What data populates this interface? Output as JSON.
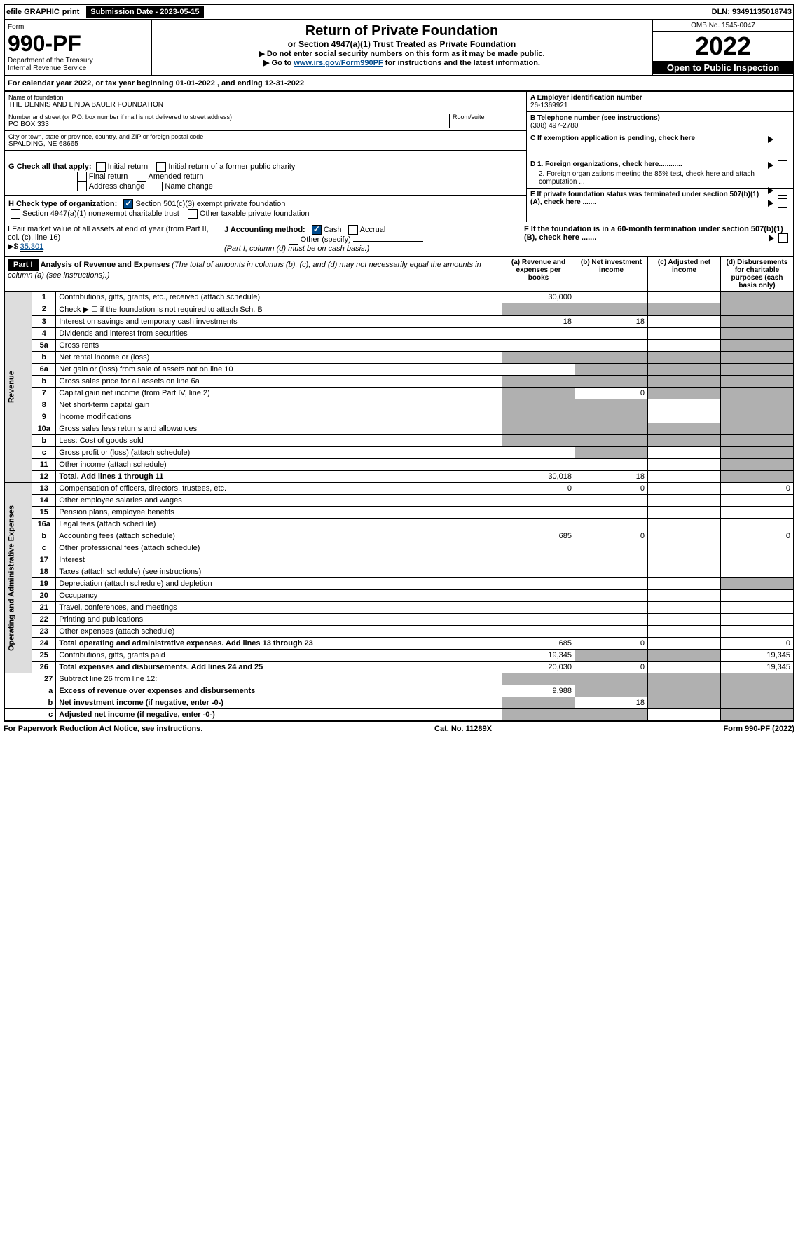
{
  "topbar": {
    "efile": "efile GRAPHIC",
    "print": "print",
    "submission_label": "Submission Date - 2023-05-15",
    "dln": "DLN: 93491135018743"
  },
  "header": {
    "form_label": "Form",
    "form_number": "990-PF",
    "dept": "Department of the Treasury\nInternal Revenue Service",
    "title": "Return of Private Foundation",
    "subtitle": "or Section 4947(a)(1) Trust Treated as Private Foundation",
    "instr1": "▶ Do not enter social security numbers on this form as it may be made public.",
    "instr2_pre": "▶ Go to ",
    "instr2_link": "www.irs.gov/Form990PF",
    "instr2_post": " for instructions and the latest information.",
    "omb": "OMB No. 1545-0047",
    "year": "2022",
    "open": "Open to Public Inspection"
  },
  "cal_year": "For calendar year 2022, or tax year beginning 01-01-2022                        , and ending 12-31-2022",
  "name_block": {
    "lbl": "Name of foundation",
    "val": "THE DENNIS AND LINDA BAUER FOUNDATION",
    "addr_lbl": "Number and street (or P.O. box number if mail is not delivered to street address)",
    "addr": "PO BOX 333",
    "room_lbl": "Room/suite",
    "city_lbl": "City or town, state or province, country, and ZIP or foreign postal code",
    "city": "SPALDING, NE  68665"
  },
  "right_block": {
    "a_lbl": "A Employer identification number",
    "a_val": "26-1369921",
    "b_lbl": "B Telephone number (see instructions)",
    "b_val": "(308) 497-2780",
    "c_lbl": "C If exemption application is pending, check here",
    "d1": "D 1. Foreign organizations, check here............",
    "d2": "2. Foreign organizations meeting the 85% test, check here and attach computation ...",
    "e_lbl": "E  If private foundation status was terminated under section 507(b)(1)(A), check here .......",
    "f_lbl": "F  If the foundation is in a 60-month termination under section 507(b)(1)(B), check here .......",
    "tri": "▶"
  },
  "g_block": {
    "lbl": "G Check all that apply:",
    "opts": [
      "Initial return",
      "Initial return of a former public charity",
      "Final return",
      "Amended return",
      "Address change",
      "Name change"
    ]
  },
  "h_block": {
    "lbl": "H Check type of organization:",
    "o1": "Section 501(c)(3) exempt private foundation",
    "o2": "Section 4947(a)(1) nonexempt charitable trust",
    "o3": "Other taxable private foundation"
  },
  "i_block": {
    "lbl": "I Fair market value of all assets at end of year (from Part II, col. (c), line 16)",
    "val": "35,301",
    "tri": "▶$"
  },
  "j_block": {
    "lbl": "J Accounting method:",
    "cash": "Cash",
    "accrual": "Accrual",
    "other": "Other (specify)",
    "note": "(Part I, column (d) must be on cash basis.)"
  },
  "part1": {
    "label": "Part I",
    "title": "Analysis of Revenue and Expenses",
    "subtitle": "(The total of amounts in columns (b), (c), and (d) may not necessarily equal the amounts in column (a) (see instructions).)",
    "cols": {
      "a": "(a)    Revenue and expenses per books",
      "b": "(b)    Net investment income",
      "c": "(c)   Adjusted net income",
      "d": "(d)   Disbursements for charitable purposes (cash basis only)"
    }
  },
  "sections": {
    "rev": "Revenue",
    "exp": "Operating and Administrative Expenses"
  },
  "rows": [
    {
      "n": "1",
      "lbl": "Contributions, gifts, grants, etc., received (attach schedule)",
      "a": "30,000",
      "b": "",
      "c": "",
      "d": "",
      "shade_d": true
    },
    {
      "n": "2",
      "lbl": "Check ▶ ☐ if the foundation is not required to attach Sch. B",
      "shade_all": true
    },
    {
      "n": "3",
      "lbl": "Interest on savings and temporary cash investments",
      "a": "18",
      "b": "18",
      "c": "",
      "d": "",
      "shade_d": true
    },
    {
      "n": "4",
      "lbl": "Dividends and interest from securities",
      "a": "",
      "b": "",
      "c": "",
      "d": "",
      "shade_d": true
    },
    {
      "n": "5a",
      "lbl": "Gross rents",
      "a": "",
      "b": "",
      "c": "",
      "d": "",
      "shade_d": true
    },
    {
      "n": "b",
      "lbl": "Net rental income or (loss)",
      "shade_all": true
    },
    {
      "n": "6a",
      "lbl": "Net gain or (loss) from sale of assets not on line 10",
      "a": "",
      "shade_bcd": true
    },
    {
      "n": "b",
      "lbl": "Gross sales price for all assets on line 6a",
      "shade_all": true
    },
    {
      "n": "7",
      "lbl": "Capital gain net income (from Part IV, line 2)",
      "shade_a": true,
      "b": "0",
      "shade_cd": true
    },
    {
      "n": "8",
      "lbl": "Net short-term capital gain",
      "shade_ab": true,
      "c": "",
      "shade_d": true
    },
    {
      "n": "9",
      "lbl": "Income modifications",
      "shade_ab": true,
      "c": "",
      "shade_d": true
    },
    {
      "n": "10a",
      "lbl": "Gross sales less returns and allowances",
      "shade_all": true
    },
    {
      "n": "b",
      "lbl": "Less: Cost of goods sold",
      "shade_all": true
    },
    {
      "n": "c",
      "lbl": "Gross profit or (loss) (attach schedule)",
      "a": "",
      "shade_b": true,
      "c": "",
      "shade_d": true
    },
    {
      "n": "11",
      "lbl": "Other income (attach schedule)",
      "a": "",
      "b": "",
      "c": "",
      "shade_d": true
    },
    {
      "n": "12",
      "lbl": "Total. Add lines 1 through 11",
      "bold": true,
      "a": "30,018",
      "b": "18",
      "c": "",
      "shade_d": true
    }
  ],
  "exp_rows": [
    {
      "n": "13",
      "lbl": "Compensation of officers, directors, trustees, etc.",
      "a": "0",
      "b": "0",
      "c": "",
      "d": "0"
    },
    {
      "n": "14",
      "lbl": "Other employee salaries and wages",
      "a": "",
      "b": "",
      "c": "",
      "d": ""
    },
    {
      "n": "15",
      "lbl": "Pension plans, employee benefits",
      "a": "",
      "b": "",
      "c": "",
      "d": ""
    },
    {
      "n": "16a",
      "lbl": "Legal fees (attach schedule)",
      "a": "",
      "b": "",
      "c": "",
      "d": ""
    },
    {
      "n": "b",
      "lbl": "Accounting fees (attach schedule)",
      "a": "685",
      "b": "0",
      "c": "",
      "d": "0"
    },
    {
      "n": "c",
      "lbl": "Other professional fees (attach schedule)",
      "a": "",
      "b": "",
      "c": "",
      "d": ""
    },
    {
      "n": "17",
      "lbl": "Interest",
      "a": "",
      "b": "",
      "c": "",
      "d": ""
    },
    {
      "n": "18",
      "lbl": "Taxes (attach schedule) (see instructions)",
      "a": "",
      "b": "",
      "c": "",
      "d": ""
    },
    {
      "n": "19",
      "lbl": "Depreciation (attach schedule) and depletion",
      "a": "",
      "b": "",
      "c": "",
      "shade_d": true
    },
    {
      "n": "20",
      "lbl": "Occupancy",
      "a": "",
      "b": "",
      "c": "",
      "d": ""
    },
    {
      "n": "21",
      "lbl": "Travel, conferences, and meetings",
      "a": "",
      "b": "",
      "c": "",
      "d": ""
    },
    {
      "n": "22",
      "lbl": "Printing and publications",
      "a": "",
      "b": "",
      "c": "",
      "d": ""
    },
    {
      "n": "23",
      "lbl": "Other expenses (attach schedule)",
      "a": "",
      "b": "",
      "c": "",
      "d": ""
    },
    {
      "n": "24",
      "lbl": "Total operating and administrative expenses. Add lines 13 through 23",
      "bold": true,
      "a": "685",
      "b": "0",
      "c": "",
      "d": "0"
    },
    {
      "n": "25",
      "lbl": "Contributions, gifts, grants paid",
      "a": "19,345",
      "shade_bc": true,
      "d": "19,345"
    },
    {
      "n": "26",
      "lbl": "Total expenses and disbursements. Add lines 24 and 25",
      "bold": true,
      "a": "20,030",
      "b": "0",
      "c": "",
      "d": "19,345"
    }
  ],
  "net_rows": [
    {
      "n": "27",
      "lbl": "Subtract line 26 from line 12:",
      "shade_all": true
    },
    {
      "n": "a",
      "lbl": "Excess of revenue over expenses and disbursements",
      "bold": true,
      "a": "9,988",
      "shade_bcd": true
    },
    {
      "n": "b",
      "lbl": "Net investment income (if negative, enter -0-)",
      "bold": true,
      "shade_a": true,
      "b": "18",
      "shade_cd": true
    },
    {
      "n": "c",
      "lbl": "Adjusted net income (if negative, enter -0-)",
      "bold": true,
      "shade_ab": true,
      "c": "",
      "shade_d": true
    }
  ],
  "footer": {
    "left": "For Paperwork Reduction Act Notice, see instructions.",
    "mid": "Cat. No. 11289X",
    "right": "Form 990-PF (2022)"
  }
}
